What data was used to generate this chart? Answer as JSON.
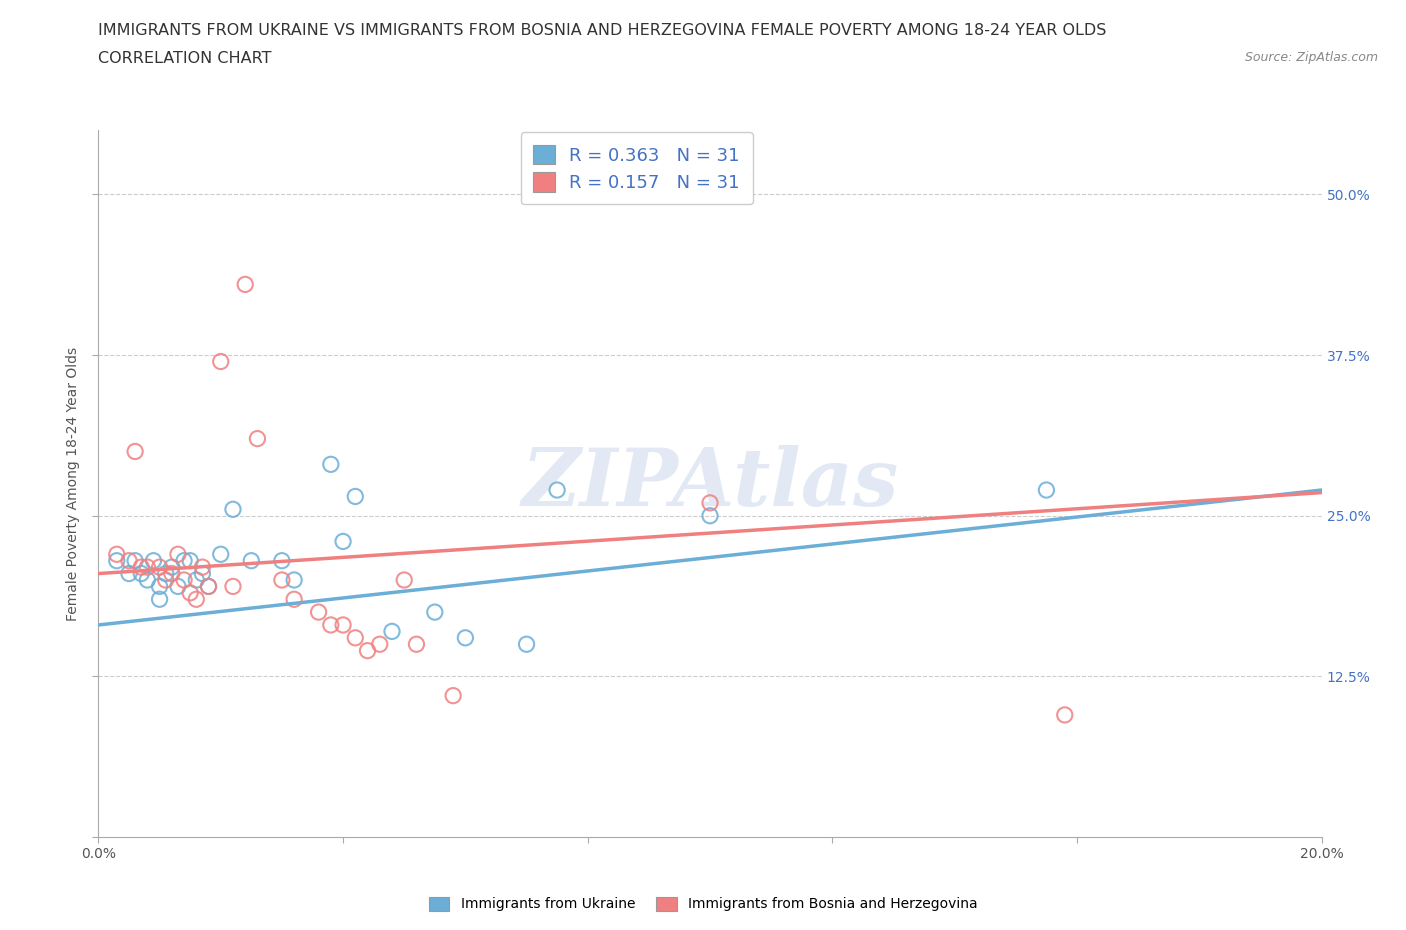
{
  "title_line1": "IMMIGRANTS FROM UKRAINE VS IMMIGRANTS FROM BOSNIA AND HERZEGOVINA FEMALE POVERTY AMONG 18-24 YEAR OLDS",
  "title_line2": "CORRELATION CHART",
  "source_text": "Source: ZipAtlas.com",
  "ylabel": "Female Poverty Among 18-24 Year Olds",
  "xlim": [
    0.0,
    0.2
  ],
  "ylim": [
    0.0,
    0.55
  ],
  "yticks": [
    0.0,
    0.125,
    0.25,
    0.375,
    0.5
  ],
  "ytick_labels_right": [
    "",
    "12.5%",
    "25.0%",
    "37.5%",
    "50.0%"
  ],
  "xtick_vals": [
    0.0,
    0.04,
    0.08,
    0.12,
    0.16,
    0.2
  ],
  "xtick_labels": [
    "0.0%",
    "",
    "",
    "",
    "",
    "20.0%"
  ],
  "watermark": "ZIPAtlas",
  "ukraine_color": "#6baed6",
  "bosnia_color": "#f08080",
  "ukraine_R": 0.363,
  "ukraine_N": 31,
  "bosnia_R": 0.157,
  "bosnia_N": 31,
  "ukraine_scatter_x": [
    0.003,
    0.005,
    0.006,
    0.007,
    0.008,
    0.009,
    0.01,
    0.01,
    0.011,
    0.012,
    0.013,
    0.014,
    0.015,
    0.016,
    0.017,
    0.018,
    0.02,
    0.022,
    0.025,
    0.03,
    0.032,
    0.038,
    0.04,
    0.042,
    0.048,
    0.055,
    0.06,
    0.07,
    0.075,
    0.1,
    0.155
  ],
  "ukraine_scatter_y": [
    0.215,
    0.205,
    0.215,
    0.205,
    0.2,
    0.215,
    0.195,
    0.185,
    0.205,
    0.21,
    0.195,
    0.215,
    0.215,
    0.2,
    0.205,
    0.195,
    0.22,
    0.255,
    0.215,
    0.215,
    0.2,
    0.29,
    0.23,
    0.265,
    0.16,
    0.175,
    0.155,
    0.15,
    0.27,
    0.25,
    0.27
  ],
  "bosnia_scatter_x": [
    0.003,
    0.005,
    0.006,
    0.007,
    0.008,
    0.01,
    0.011,
    0.012,
    0.013,
    0.014,
    0.015,
    0.016,
    0.017,
    0.018,
    0.02,
    0.022,
    0.024,
    0.026,
    0.03,
    0.032,
    0.036,
    0.038,
    0.04,
    0.042,
    0.044,
    0.046,
    0.05,
    0.052,
    0.058,
    0.1,
    0.158
  ],
  "bosnia_scatter_y": [
    0.22,
    0.215,
    0.3,
    0.21,
    0.21,
    0.21,
    0.2,
    0.205,
    0.22,
    0.2,
    0.19,
    0.185,
    0.21,
    0.195,
    0.37,
    0.195,
    0.43,
    0.31,
    0.2,
    0.185,
    0.175,
    0.165,
    0.165,
    0.155,
    0.145,
    0.15,
    0.2,
    0.15,
    0.11,
    0.26,
    0.095
  ],
  "ukraine_line_x": [
    0.0,
    0.2
  ],
  "ukraine_line_y": [
    0.165,
    0.27
  ],
  "bosnia_line_x": [
    0.0,
    0.2
  ],
  "bosnia_line_y": [
    0.205,
    0.268
  ],
  "grid_color": "#cccccc",
  "background_color": "#ffffff",
  "title_fontsize": 11.5,
  "axis_label_fontsize": 10,
  "tick_fontsize": 10,
  "right_tick_color": "#4472c4",
  "legend_text_color": "#4472c4"
}
